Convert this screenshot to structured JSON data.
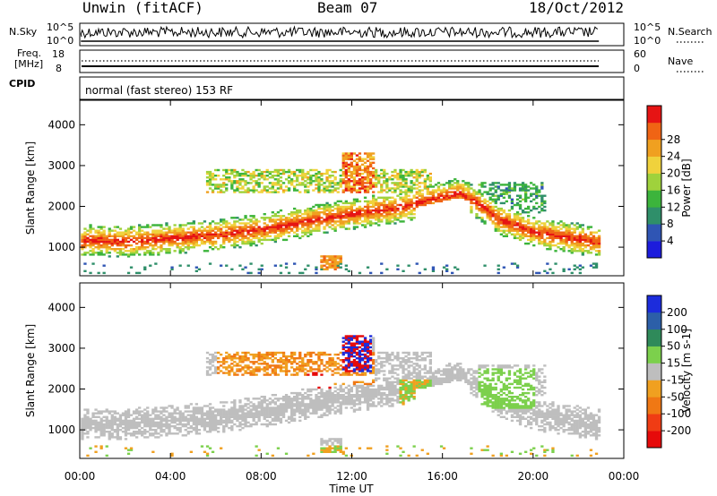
{
  "header": {
    "station": "Unwin (fitACF)",
    "beam": "Beam 07",
    "date": "18/Oct/2012"
  },
  "top_panels": {
    "nsky_label": "N.Sky",
    "nsearch_label": "N.Search",
    "freq_label_1": "Freq.",
    "freq_label_2": "[MHz]",
    "nave_label": "Nave",
    "cpid_label": "CPID",
    "cpid_value": "normal (fast stereo) 153 RF",
    "noise_ticks_left": [
      "10^5",
      "10^0"
    ],
    "noise_ticks_right": [
      "10^5",
      "10^0"
    ],
    "freq_ticks": [
      "18",
      "8"
    ],
    "nave_ticks": [
      "60",
      "0"
    ]
  },
  "chart_data": [
    {
      "type": "heatmap",
      "quantity": "Power",
      "xlabel": "Time UT",
      "ylabel": "Slant Range [km]",
      "colorbar_label": "Power [dB]",
      "x_ticks": [
        "00:00",
        "04:00",
        "08:00",
        "12:00",
        "16:00",
        "20:00",
        "00:00"
      ],
      "y_ticks": [
        1000,
        2000,
        3000,
        4000
      ],
      "ylim": [
        300,
        4600
      ],
      "xlim_hours": [
        0,
        24
      ],
      "colorbar_ticks": [
        4,
        8,
        12,
        16,
        20,
        24,
        28
      ],
      "colorbar_colors": [
        "#1c1cdc",
        "#2f55b4",
        "#2f8f6a",
        "#3cb43c",
        "#9fd23c",
        "#f0d23c",
        "#f0a020",
        "#f06414",
        "#e61414"
      ],
      "data_end_hour": 22.9,
      "main_band": [
        [
          0.1,
          1150
        ],
        [
          2,
          1120
        ],
        [
          4,
          1200
        ],
        [
          6,
          1280
        ],
        [
          8,
          1420
        ],
        [
          10,
          1620
        ],
        [
          12,
          1800
        ],
        [
          14,
          1950
        ],
        [
          15.5,
          2150
        ],
        [
          16.7,
          2300
        ],
        [
          17.5,
          2050
        ],
        [
          18.5,
          1650
        ],
        [
          20,
          1350
        ],
        [
          22.9,
          1100
        ]
      ]
    },
    {
      "type": "heatmap",
      "quantity": "Velocity",
      "xlabel": "Time UT",
      "ylabel": "Slant Range [km]",
      "colorbar_label": "Velocity [m s-1]",
      "x_ticks": [
        "00:00",
        "04:00",
        "08:00",
        "12:00",
        "16:00",
        "20:00",
        "00:00"
      ],
      "y_ticks": [
        1000,
        2000,
        3000,
        4000
      ],
      "ylim": [
        300,
        4600
      ],
      "xlim_hours": [
        0,
        24
      ],
      "colorbar_ticks": [
        "200",
        "100",
        "50",
        "15",
        "-15",
        "-50",
        "-100",
        "-200"
      ],
      "colorbar_colors": [
        "#1c2cdc",
        "#2c5fa8",
        "#2f8a5a",
        "#7cd04c",
        "#bebebe",
        "#f0a020",
        "#f07814",
        "#f03c14",
        "#e60a0a"
      ],
      "data_end_hour": 22.9
    }
  ]
}
